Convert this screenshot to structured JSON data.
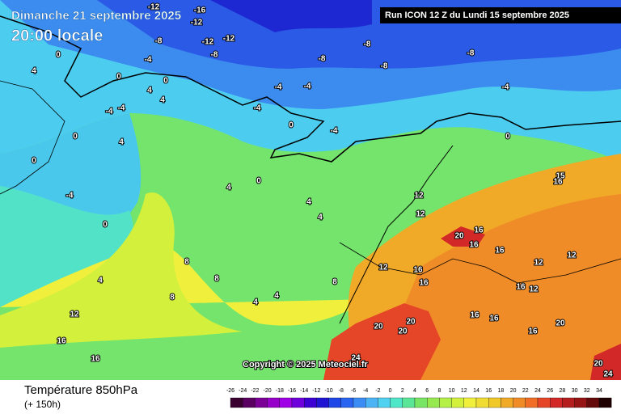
{
  "header": {
    "date": "Dimanche 21 septembre 2025",
    "time": "20:00 locale",
    "run": "Run ICON 12 Z du Lundi 15 septembre 2025"
  },
  "copyright": "Copyright © 2025 Meteociel.fr",
  "legend": {
    "title": "Température 850hPa",
    "lead": "(+ 150h)",
    "ticks": [
      -26,
      -24,
      -22,
      -20,
      -18,
      -16,
      -14,
      -12,
      -10,
      -8,
      -6,
      -4,
      -2,
      0,
      2,
      4,
      6,
      8,
      10,
      12,
      14,
      16,
      18,
      20,
      22,
      24,
      26,
      28,
      30,
      32,
      34
    ],
    "colors": [
      "#3a0030",
      "#5a0060",
      "#7a0096",
      "#9600c8",
      "#a000e6",
      "#6e00dc",
      "#3c00d2",
      "#1e14d2",
      "#1e46e6",
      "#2864f0",
      "#3c8cf5",
      "#4cb4f5",
      "#50d2f0",
      "#50e6c8",
      "#5ae696",
      "#78e664",
      "#96ea50",
      "#b4f046",
      "#d2f03c",
      "#f0f03c",
      "#f0dc32",
      "#f0c828",
      "#f0aa28",
      "#f08c28",
      "#f06e28",
      "#e64628",
      "#d22828",
      "#b41e1e",
      "#961414",
      "#640a0a",
      "#1e0000"
    ]
  },
  "contour_labels": [
    "-12",
    "-16",
    "-12",
    "-12",
    "-12",
    "-8",
    "-8",
    "-8",
    "-8",
    "-8",
    "-8",
    "-4",
    "-4",
    "-4",
    "-4",
    "-4",
    "-4",
    "0",
    "0",
    "0",
    "4",
    "4",
    "-4",
    "-4",
    "0",
    "4",
    "0",
    "-4",
    "0",
    "0",
    "4",
    "0",
    "4",
    "4",
    "4",
    "12",
    "12",
    "16",
    "20",
    "16",
    "16",
    "12",
    "12",
    "16",
    "16",
    "12",
    "8",
    "8",
    "8",
    "8",
    "4",
    "4",
    "4",
    "16",
    "16",
    "12",
    "20",
    "20",
    "20",
    "16",
    "16",
    "16",
    "20",
    "24",
    "24",
    "20",
    "16",
    "12",
    "15",
    "16",
    "0"
  ]
}
